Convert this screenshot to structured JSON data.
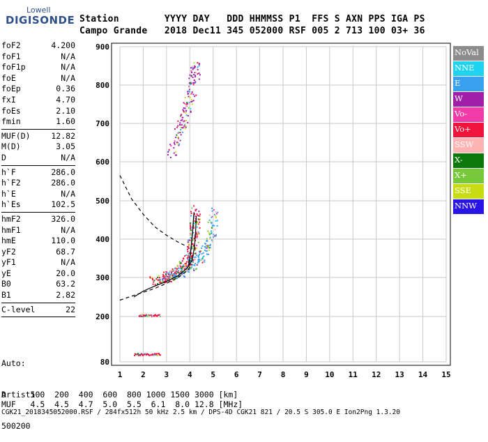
{
  "logo": {
    "top": "Lowell",
    "main": "DIGISONDE"
  },
  "header": {
    "line1": "Station        YYYY DAY   DDD HHMMSS P1  FFS S AXN PPS IGA PS",
    "line2": "Campo Grande   2018 Dec11 345 052000 RSF 005 2 713 100 03+ 36"
  },
  "params": [
    {
      "group": [
        {
          "name": "foF2",
          "value": "4.200"
        },
        {
          "name": "foF1",
          "value": "N/A"
        },
        {
          "name": "foF1p",
          "value": "N/A"
        },
        {
          "name": "foE",
          "value": "N/A"
        },
        {
          "name": "foEp",
          "value": "0.36"
        },
        {
          "name": "fxI",
          "value": "4.70"
        },
        {
          "name": "foEs",
          "value": "2.10"
        },
        {
          "name": "fmin",
          "value": "1.60"
        }
      ]
    },
    {
      "group": [
        {
          "name": "MUF(D)",
          "value": "12.82"
        },
        {
          "name": "M(D)",
          "value": "3.05"
        },
        {
          "name": "D",
          "value": "N/A"
        }
      ]
    },
    {
      "group": [
        {
          "name": "h`F",
          "value": "286.0"
        },
        {
          "name": "h`F2",
          "value": "286.0"
        },
        {
          "name": "h`E",
          "value": "N/A"
        },
        {
          "name": "h`Es",
          "value": "102.5"
        }
      ]
    },
    {
      "group": [
        {
          "name": "hmF2",
          "value": "326.0"
        },
        {
          "name": "hmF1",
          "value": "N/A"
        },
        {
          "name": "hmE",
          "value": "110.0"
        },
        {
          "name": "yF2",
          "value": "68.7"
        },
        {
          "name": "yF1",
          "value": "N/A"
        },
        {
          "name": "yE",
          "value": "20.0"
        },
        {
          "name": "B0",
          "value": "63.2"
        },
        {
          "name": "B1",
          "value": "2.82"
        }
      ]
    },
    {
      "group": [
        {
          "name": "C-level",
          "value": "22"
        }
      ]
    }
  ],
  "auto": {
    "line1": "Auto:",
    "line2": "Artist5",
    "line3": "500200"
  },
  "legend": [
    {
      "label": "NoVal",
      "color": "#8c8c8c"
    },
    {
      "label": "NNE",
      "color": "#1fd3f0"
    },
    {
      "label": "E",
      "color": "#3aa0f0"
    },
    {
      "label": "W",
      "color": "#a01ea8"
    },
    {
      "label": "Vo-",
      "color": "#f03ca8"
    },
    {
      "label": "Vo+",
      "color": "#f0143c"
    },
    {
      "label": "SSW",
      "color": "#ffb4b4"
    },
    {
      "label": "X-",
      "color": "#0a780a"
    },
    {
      "label": "X+",
      "color": "#78c83c"
    },
    {
      "label": "SSE",
      "color": "#c8dc14"
    },
    {
      "label": "NNW",
      "color": "#2814e6"
    }
  ],
  "bottom": {
    "line1": "D     100  200  400  600  800 1000 1500 3000 [km]",
    "line2": "MUF   4.5  4.5  4.7  5.0  5.5  6.1  8.0 12.8 [MHz]",
    "line3": "CGK21_2018345052000.RSF / 284fx512h 50 kHz 2.5 km / DPS-4D CGK21 821 / 20.5 S 305.0 E Ion2Png 1.3.20"
  },
  "chart_data": {
    "type": "scatter",
    "xlim": [
      1,
      15
    ],
    "ylim": [
      80,
      900
    ],
    "x_ticks": [
      "1",
      "2",
      "3",
      "4",
      "5",
      "6",
      "7",
      "8",
      "9",
      "10",
      "11",
      "12",
      "13",
      "14",
      "15"
    ],
    "y_ticks": [
      "80",
      "200",
      "300",
      "400",
      "500",
      "600",
      "700",
      "800",
      "900"
    ],
    "y_tick_values": [
      80,
      200,
      300,
      400,
      500,
      600,
      700,
      800,
      900
    ],
    "grid": true,
    "traces": [
      {
        "name": "Es layer (~100 km)",
        "color": "#f0143c",
        "fmin": 1.6,
        "fmax": 2.7,
        "h": 102
      },
      {
        "name": "Es second hop (~205 km)",
        "color": "#f0143c",
        "fmin": 1.8,
        "fmax": 2.7,
        "h": 205
      },
      {
        "name": "F2 trace",
        "color": "#f0143c",
        "points": [
          [
            2.4,
            290
          ],
          [
            2.8,
            298
          ],
          [
            3.1,
            305
          ],
          [
            3.4,
            315
          ],
          [
            3.7,
            330
          ],
          [
            3.9,
            345
          ],
          [
            4.05,
            370
          ],
          [
            4.15,
            400
          ],
          [
            4.2,
            440
          ],
          [
            4.22,
            480
          ]
        ]
      },
      {
        "name": "F2 X-trace",
        "color": "#3aa0f0",
        "points": [
          [
            3.0,
            300
          ],
          [
            3.5,
            312
          ],
          [
            4.0,
            330
          ],
          [
            4.4,
            350
          ],
          [
            4.7,
            380
          ],
          [
            4.9,
            420
          ],
          [
            5.0,
            480
          ]
        ]
      },
      {
        "name": "F2 second hop",
        "color": "#a01ea8",
        "points": [
          [
            3.2,
            620
          ],
          [
            3.5,
            680
          ],
          [
            3.8,
            720
          ],
          [
            4.0,
            770
          ],
          [
            4.15,
            820
          ],
          [
            4.3,
            860
          ]
        ]
      }
    ],
    "profile_curve": [
      [
        1.6,
        250
      ],
      [
        2.0,
        265
      ],
      [
        2.5,
        278
      ],
      [
        3.0,
        290
      ],
      [
        3.5,
        305
      ],
      [
        3.9,
        325
      ],
      [
        4.1,
        345
      ],
      [
        4.2,
        380
      ],
      [
        4.25,
        420
      ],
      [
        4.28,
        460
      ]
    ],
    "dashed_curve_lower": [
      [
        1.0,
        242
      ],
      [
        1.8,
        258
      ],
      [
        2.5,
        272
      ],
      [
        3.0,
        285
      ],
      [
        3.5,
        300
      ],
      [
        3.9,
        318
      ],
      [
        4.1,
        335
      ]
    ],
    "dashed_curve_upper": [
      [
        1.0,
        565
      ],
      [
        1.5,
        505
      ],
      [
        2.0,
        465
      ],
      [
        2.5,
        432
      ],
      [
        3.0,
        410
      ],
      [
        3.5,
        392
      ],
      [
        3.9,
        380
      ]
    ],
    "h_profile_line": [
      [
        3.95,
        330
      ],
      [
        4.05,
        375
      ],
      [
        4.12,
        420
      ],
      [
        4.18,
        470
      ]
    ]
  }
}
